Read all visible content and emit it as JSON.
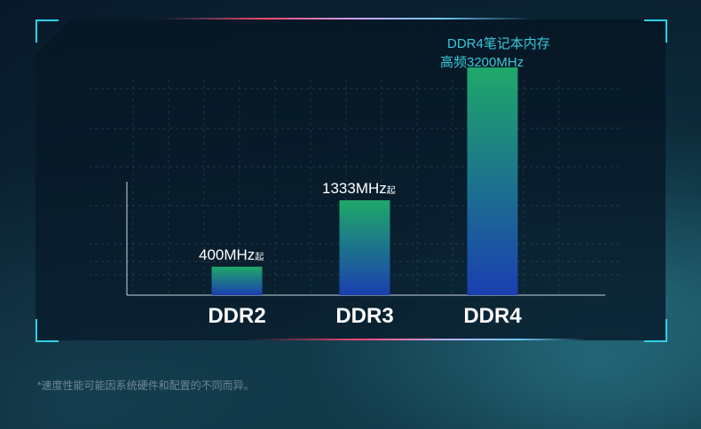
{
  "chart_data": {
    "type": "bar",
    "categories": [
      "DDR2",
      "DDR3",
      "DDR4"
    ],
    "values": [
      400,
      1333,
      3200
    ],
    "data_labels": [
      {
        "value_text": "400MHz",
        "suffix": "起"
      },
      {
        "value_text": "1333MHz",
        "suffix": "起"
      },
      {
        "lines": [
          "DDR4笔记本内存",
          "高频3200MHz"
        ]
      }
    ],
    "title": "",
    "xlabel": "",
    "ylabel": "",
    "ylim": [
      0,
      3300
    ],
    "grid": true,
    "colors": {
      "bar_top": "#1fa86a",
      "bar_bottom": "#1a3fb0",
      "accent": "#2fd0e6",
      "label_highlight": "#37c9d8",
      "text": "#ffffff",
      "grid": "#3b5566"
    }
  },
  "footnote": "*速度性能可能因系统硬件和配置的不同而异。"
}
